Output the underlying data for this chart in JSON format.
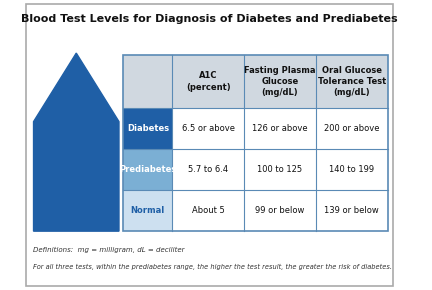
{
  "title": "Blood Test Levels for Diagnosis of Diabetes and Prediabetes",
  "col_headers": [
    "A1C\n(percent)",
    "Fasting Plasma\nGlucose\n(mg/dL)",
    "Oral Glucose\nTolerance Test\n(mg/dL)"
  ],
  "row_labels": [
    "Diabetes",
    "Prediabetes",
    "Normal"
  ],
  "row_label_colors": [
    "#1f5fa6",
    "#7bafd4",
    "#cde0f0"
  ],
  "row_label_text_colors": [
    "#ffffff",
    "#ffffff",
    "#1f5fa6"
  ],
  "cell_data": [
    [
      "6.5 or above",
      "126 or above",
      "200 or above"
    ],
    [
      "5.7 to 6.4",
      "100 to 125",
      "140 to 199"
    ],
    [
      "About 5",
      "99 or below",
      "139 or below"
    ]
  ],
  "arrow_color": "#1f5fa6",
  "header_bg_color": "#d0d8e0",
  "cell_bg_color": "#ffffff",
  "border_color": "#5a8ab5",
  "footnote_line1": "Definitions:  mg = milligram, dL = deciliter",
  "footnote_line2": "For all three tests, within the prediabetes range, the higher the test result, the greater the risk of diabetes.",
  "outer_border_color": "#aaaaaa",
  "background_color": "#ffffff"
}
